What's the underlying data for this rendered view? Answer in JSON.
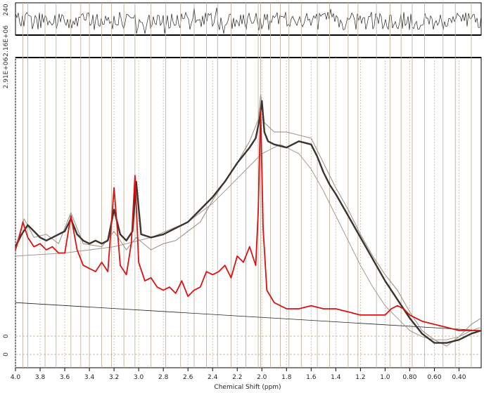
{
  "chart_data": {
    "type": "line",
    "xlabel": "Chemical Shift (ppm)",
    "x_reversed": true,
    "xlim": [
      4.0,
      0.22
    ],
    "x_ticks": [
      {
        "v": 4.0,
        "label": "4.0"
      },
      {
        "v": 3.8,
        "label": "3.8"
      },
      {
        "v": 3.6,
        "label": "3.6"
      },
      {
        "v": 3.4,
        "label": "3.4"
      },
      {
        "v": 3.2,
        "label": "3.2"
      },
      {
        "v": 3.0,
        "label": "3.0"
      },
      {
        "v": 2.8,
        "label": "2.8"
      },
      {
        "v": 2.6,
        "label": "2.6"
      },
      {
        "v": 2.4,
        "label": "2.4"
      },
      {
        "v": 2.2,
        "label": "2.2"
      },
      {
        "v": 2.0,
        "label": "2.0"
      },
      {
        "v": 1.8,
        "label": "1.8"
      },
      {
        "v": 1.6,
        "label": "1.6"
      },
      {
        "v": 1.4,
        "label": "1.4"
      },
      {
        "v": 1.2,
        "label": "1.2"
      },
      {
        "v": 1.0,
        "label": "1.0"
      },
      {
        "v": 0.8,
        "label": "0.80"
      },
      {
        "v": 0.6,
        "label": "0.60"
      },
      {
        "v": 0.4,
        "label": "0.40"
      }
    ],
    "residual_panel": {
      "y_tick_label": "240",
      "lower_label": "-2.16E+06"
    },
    "main_panel": {
      "top_label": "2.91E+06",
      "zero_labels": [
        "0",
        "0"
      ]
    },
    "vertical_markers_ppm": [
      3.94,
      3.9,
      3.76,
      3.67,
      3.55,
      3.47,
      3.4,
      3.3,
      3.22,
      3.12,
      3.03,
      2.9,
      2.78,
      2.66,
      2.55,
      2.45,
      2.36,
      2.25,
      2.13,
      2.03,
      2.01,
      1.93,
      1.85,
      1.78,
      1.68,
      1.55,
      1.45,
      1.3,
      1.22,
      1.07,
      0.96,
      0.87,
      0.78,
      0.68,
      0.53,
      0.43,
      0.3
    ],
    "series": [
      {
        "role": "data",
        "color": "#9a8b7e",
        "x": [
          4.0,
          3.93,
          3.85,
          3.75,
          3.65,
          3.55,
          3.45,
          3.3,
          3.2,
          3.1,
          3.02,
          2.9,
          2.8,
          2.7,
          2.6,
          2.5,
          2.4,
          2.3,
          2.2,
          2.1,
          2.03,
          2.01,
          1.98,
          1.9,
          1.8,
          1.7,
          1.6,
          1.5,
          1.4,
          1.3,
          1.2,
          1.1,
          1.0,
          0.9,
          0.8,
          0.7,
          0.6,
          0.5,
          0.4,
          0.3,
          0.22
        ],
        "y": [
          0.39,
          0.48,
          0.42,
          0.43,
          0.4,
          0.5,
          0.4,
          0.39,
          0.44,
          0.38,
          0.42,
          0.38,
          0.4,
          0.41,
          0.44,
          0.47,
          0.54,
          0.6,
          0.66,
          0.73,
          0.8,
          0.88,
          0.79,
          0.76,
          0.76,
          0.75,
          0.74,
          0.66,
          0.58,
          0.51,
          0.43,
          0.36,
          0.3,
          0.25,
          0.18,
          0.12,
          0.09,
          0.07,
          0.1,
          0.14,
          0.16
        ]
      },
      {
        "role": "fit",
        "color": "#3a342e",
        "x": [
          4.0,
          3.95,
          3.9,
          3.85,
          3.8,
          3.75,
          3.7,
          3.65,
          3.6,
          3.55,
          3.5,
          3.45,
          3.4,
          3.35,
          3.3,
          3.25,
          3.2,
          3.15,
          3.1,
          3.05,
          3.02,
          2.98,
          2.9,
          2.8,
          2.7,
          2.6,
          2.5,
          2.4,
          2.3,
          2.2,
          2.1,
          2.05,
          2.02,
          2.0,
          1.98,
          1.95,
          1.9,
          1.8,
          1.7,
          1.6,
          1.55,
          1.5,
          1.45,
          1.4,
          1.3,
          1.2,
          1.1,
          1.0,
          0.9,
          0.8,
          0.7,
          0.6,
          0.5,
          0.4,
          0.3,
          0.22
        ],
        "y": [
          0.39,
          0.43,
          0.46,
          0.44,
          0.42,
          0.41,
          0.42,
          0.43,
          0.44,
          0.48,
          0.43,
          0.41,
          0.4,
          0.41,
          0.4,
          0.41,
          0.51,
          0.43,
          0.41,
          0.44,
          0.6,
          0.43,
          0.42,
          0.43,
          0.45,
          0.47,
          0.51,
          0.55,
          0.6,
          0.66,
          0.71,
          0.74,
          0.8,
          0.86,
          0.76,
          0.73,
          0.72,
          0.71,
          0.73,
          0.72,
          0.68,
          0.63,
          0.59,
          0.56,
          0.49,
          0.42,
          0.35,
          0.28,
          0.22,
          0.16,
          0.11,
          0.08,
          0.08,
          0.09,
          0.11,
          0.12
        ]
      },
      {
        "role": "baseline",
        "color": "#a39a92",
        "x": [
          4.0,
          3.6,
          3.2,
          2.9,
          2.6,
          2.4,
          2.2,
          2.0,
          1.9,
          1.85,
          1.8,
          1.7,
          1.6,
          1.5,
          1.4,
          1.3,
          1.2,
          1.1,
          1.0,
          0.9,
          0.8,
          0.7,
          0.6,
          0.5,
          0.4,
          0.3,
          0.22
        ],
        "y": [
          0.36,
          0.37,
          0.39,
          0.42,
          0.47,
          0.53,
          0.61,
          0.69,
          0.71,
          0.72,
          0.71,
          0.69,
          0.64,
          0.57,
          0.49,
          0.41,
          0.33,
          0.26,
          0.2,
          0.16,
          0.12,
          0.1,
          0.09,
          0.09,
          0.1,
          0.12,
          0.13
        ]
      },
      {
        "role": "metabolite",
        "color": "#dd1111",
        "x": [
          4.0,
          3.97,
          3.94,
          3.9,
          3.85,
          3.8,
          3.75,
          3.7,
          3.65,
          3.6,
          3.55,
          3.5,
          3.45,
          3.4,
          3.35,
          3.3,
          3.25,
          3.2,
          3.15,
          3.1,
          3.06,
          3.03,
          3.0,
          2.95,
          2.9,
          2.85,
          2.8,
          2.75,
          2.7,
          2.65,
          2.6,
          2.55,
          2.5,
          2.45,
          2.4,
          2.35,
          2.3,
          2.25,
          2.2,
          2.15,
          2.1,
          2.05,
          2.03,
          2.01,
          1.99,
          1.96,
          1.9,
          1.8,
          1.7,
          1.6,
          1.5,
          1.4,
          1.3,
          1.2,
          1.1,
          1.0,
          0.95,
          0.9,
          0.85,
          0.8,
          0.7,
          0.6,
          0.5,
          0.4,
          0.3,
          0.22
        ],
        "y": [
          0.38,
          0.42,
          0.47,
          0.42,
          0.39,
          0.4,
          0.38,
          0.39,
          0.37,
          0.37,
          0.49,
          0.38,
          0.33,
          0.32,
          0.31,
          0.34,
          0.31,
          0.58,
          0.33,
          0.3,
          0.4,
          0.62,
          0.34,
          0.28,
          0.29,
          0.26,
          0.25,
          0.26,
          0.24,
          0.28,
          0.23,
          0.25,
          0.26,
          0.31,
          0.3,
          0.31,
          0.33,
          0.29,
          0.36,
          0.34,
          0.39,
          0.33,
          0.5,
          0.83,
          0.45,
          0.25,
          0.21,
          0.19,
          0.19,
          0.2,
          0.19,
          0.19,
          0.18,
          0.17,
          0.17,
          0.17,
          0.19,
          0.2,
          0.19,
          0.17,
          0.15,
          0.14,
          0.13,
          0.12,
          0.12,
          0.12
        ]
      },
      {
        "role": "linear-baseline",
        "color": "#222222",
        "x": [
          4.0,
          0.22
        ],
        "y": [
          0.21,
          0.12
        ]
      }
    ]
  }
}
